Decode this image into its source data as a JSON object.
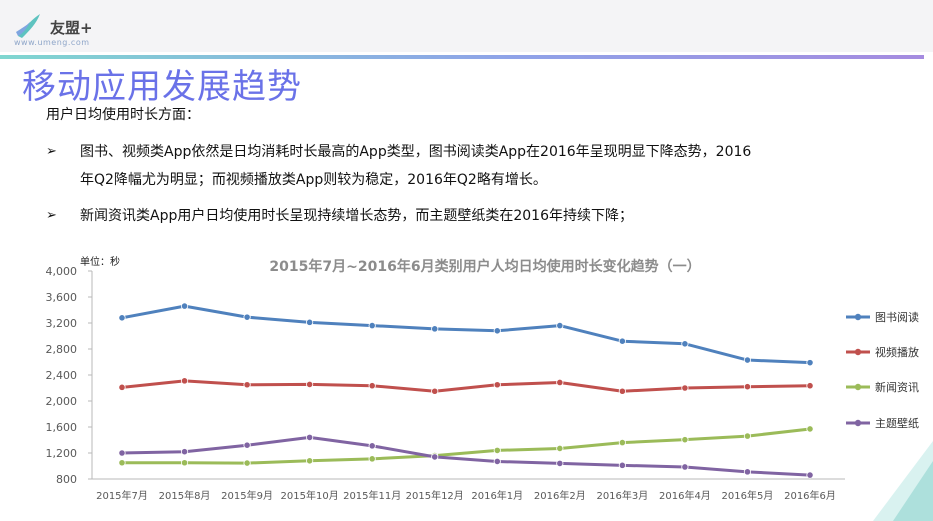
{
  "header": {
    "logo_text": "友盟+",
    "logo_url": "www.umeng.com"
  },
  "page": {
    "title": "移动应用发展趋势",
    "intro": "用户日均使用时长方面：",
    "bullets": [
      {
        "marker": "➢",
        "lines": [
          "图书、视频类App依然是日均消耗时长最高的App类型，图书阅读类App在2016年呈现明显下降态势，2016",
          "年Q2降幅尤为明显；而视频播放类App则较为稳定，2016年Q2略有增长。"
        ]
      },
      {
        "marker": "➢",
        "lines": [
          "新闻资讯类App用户日均使用时长呈现持续增长态势，而主题壁纸类在2016年持续下降；"
        ]
      }
    ]
  },
  "chart_data": {
    "type": "line",
    "title": "2015年7月~2016年6月类别用户人均日均使用时长变化趋势（一）",
    "unit_label": "单位：秒",
    "categories": [
      "2015年7月",
      "2015年8月",
      "2015年9月",
      "2015年10月",
      "2015年11月",
      "2015年12月",
      "2016年1月",
      "2016年2月",
      "2016年3月",
      "2016年4月",
      "2016年5月",
      "2016年6月"
    ],
    "ylim": [
      800,
      4000
    ],
    "yticks": [
      "4,000",
      "3,600",
      "3,200",
      "2,800",
      "2,400",
      "2,000",
      "1,600",
      "1,200",
      "800"
    ],
    "ytick_values": [
      4000,
      3600,
      3200,
      2800,
      2400,
      2000,
      1600,
      1200,
      800
    ],
    "legend_position": "right",
    "series": [
      {
        "name": "图书阅读",
        "color": "#4f81bd",
        "values": [
          3280,
          3460,
          3290,
          3210,
          3160,
          3110,
          3080,
          3160,
          2920,
          2880,
          2630,
          2590
        ]
      },
      {
        "name": "视频播放",
        "color": "#c0504d",
        "values": [
          2210,
          2310,
          2250,
          2255,
          2235,
          2150,
          2250,
          2285,
          2150,
          2200,
          2220,
          2235
        ]
      },
      {
        "name": "新闻资讯",
        "color": "#9bbb59",
        "values": [
          1050,
          1050,
          1045,
          1080,
          1110,
          1160,
          1240,
          1270,
          1360,
          1405,
          1460,
          1570
        ]
      },
      {
        "name": "主题壁纸",
        "color": "#8064a2",
        "values": [
          1200,
          1220,
          1320,
          1440,
          1310,
          1140,
          1070,
          1040,
          1010,
          985,
          910,
          860
        ]
      }
    ]
  }
}
